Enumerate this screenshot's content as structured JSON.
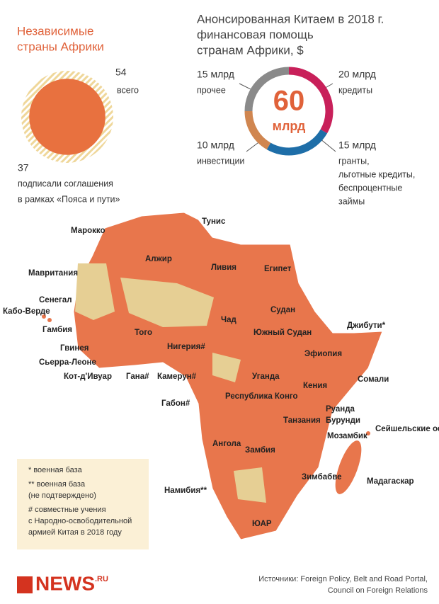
{
  "independent": {
    "title": [
      "Независимые",
      "страны Африки"
    ],
    "total": {
      "value": 54,
      "caption": "всего"
    },
    "signed": {
      "value": 37,
      "caption": [
        "подписали соглашения",
        "в рамках «Пояса и пути»"
      ]
    }
  },
  "aid": {
    "title": [
      "Анонсированная Китаем в 2018 г.",
      "финансовая помощь",
      "странам Африки, $"
    ],
    "total": {
      "value": 60,
      "unit": "млрд"
    },
    "segments": [
      {
        "label": "20 млрд",
        "value": 20,
        "caption": [
          "кредиты"
        ],
        "color": "#c8205a"
      },
      {
        "label": "15 млрд",
        "value": 15,
        "caption": [
          "гранты,",
          "льготные кредиты,",
          "беспроцентные",
          "займы"
        ],
        "color": "#1e6ea8"
      },
      {
        "label": "10 млрд",
        "value": 10,
        "caption": [
          "инвестиции"
        ],
        "color": "#d08650"
      },
      {
        "label": "15 млрд",
        "value": 15,
        "caption": [
          "прочее"
        ],
        "color": "#8a8a8a"
      }
    ]
  },
  "map": {
    "countries": [
      "Марокко",
      "Тунис",
      "Алжир",
      "Ливия",
      "Египет",
      "Мавритания",
      "Сенегал",
      "Кабо-Верде",
      "Гамбия",
      "Гвинея",
      "Сьерра-Леоне",
      "Кот-д'Ивуар",
      "Гана#",
      "Того",
      "Нигерия#",
      "Камерун#",
      "Габон#",
      "Чад",
      "Судан",
      "Южный Судан",
      "Джибути*",
      "Эфиопия",
      "Сомали",
      "Уганда",
      "Кения",
      "Республика Конго",
      "Руанда",
      "Бурунди",
      "Танзания",
      "Ангола",
      "Замбия",
      "Мозамбик",
      "Сейшельские острова",
      "Зимбабве",
      "Мадагаскар",
      "Намибия**",
      "ЮАР"
    ]
  },
  "legend": [
    [
      "* военная база"
    ],
    [
      "** военная база",
      "(не подтверждено)"
    ],
    [
      "# совместные учения",
      "с Народно-освободительной",
      "армией Китая в 2018 году"
    ]
  ],
  "footer": {
    "logo": "NEWS",
    "logo_suffix": ".RU",
    "sources": [
      "Источники: Foreign Policy, Belt and Road Portal,",
      "Council on Foreign Relations"
    ]
  }
}
